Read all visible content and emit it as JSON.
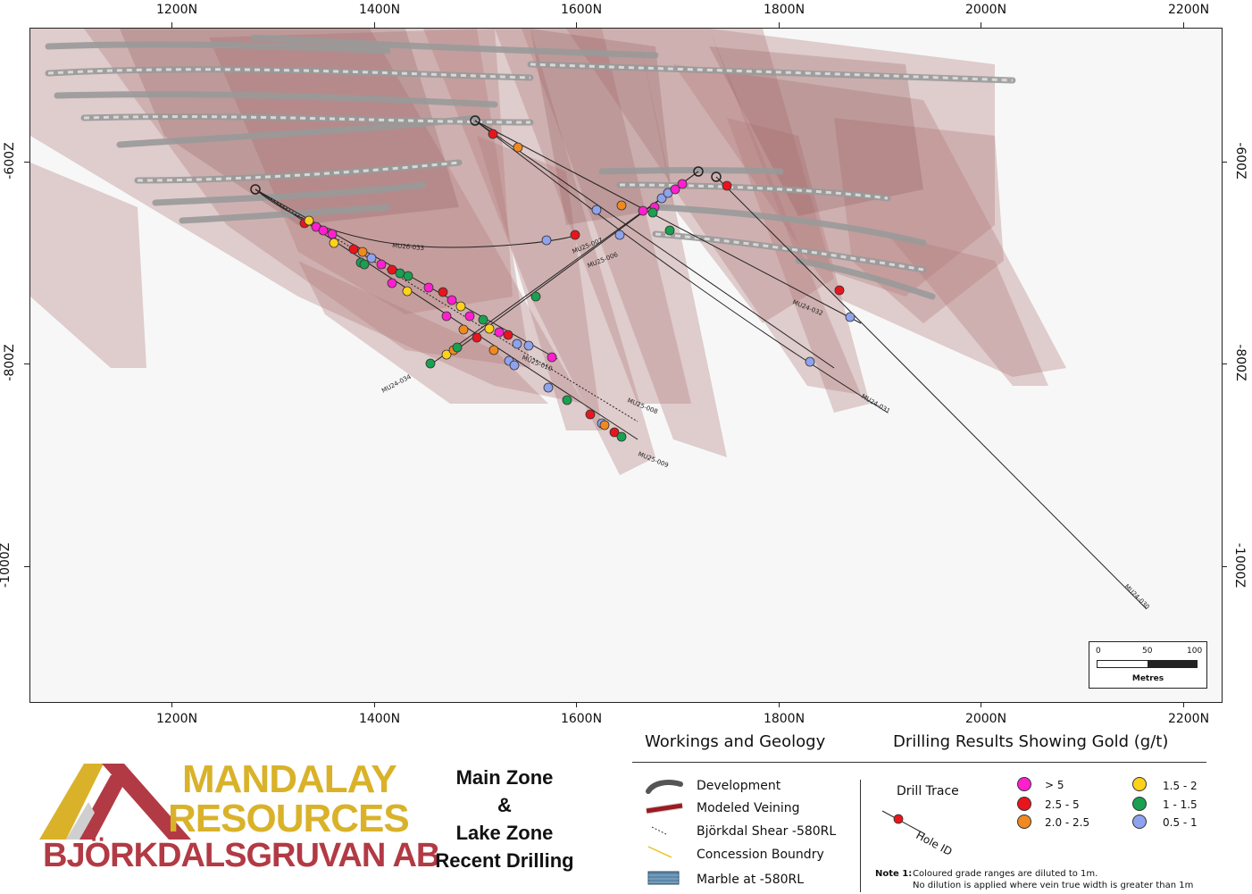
{
  "axes": {
    "northing_labels": [
      "1200N",
      "1400N",
      "1600N",
      "1800N",
      "2000N",
      "2200N"
    ],
    "depth_labels": [
      "-600Z",
      "-800Z",
      "-1000Z"
    ]
  },
  "drill_holes": [
    {
      "id": "MU26-033",
      "label": "MU26-033"
    },
    {
      "id": "MU25-007",
      "label": "MU25-007"
    },
    {
      "id": "MU25-006",
      "label": "MU25-006"
    },
    {
      "id": "MU24-032",
      "label": "MU24-032"
    },
    {
      "id": "MU25-010",
      "label": "MU25-010"
    },
    {
      "id": "MU24-034",
      "label": "MU24-034"
    },
    {
      "id": "MU25-008",
      "label": "MU25-008"
    },
    {
      "id": "MU24-031",
      "label": "MU24-031"
    },
    {
      "id": "MU25-009",
      "label": "MU25-009"
    },
    {
      "id": "MU24-030",
      "label": "MU24-030"
    }
  ],
  "scale_bar": {
    "ticks": [
      "0",
      "50",
      "100"
    ],
    "unit": "Metres"
  },
  "legend": {
    "workings_title": "Workings and Geology",
    "drilling_title": "Drilling Results Showing Gold (g/t)",
    "items": [
      {
        "label": "Development"
      },
      {
        "label": "Modeled Veining"
      },
      {
        "label": "Björkdal Shear -580RL"
      },
      {
        "label": "Concession Boundry"
      },
      {
        "label": "Marble at -580RL"
      }
    ],
    "drill_trace": "Drill Trace",
    "hole_id": "Hole ID",
    "grades": [
      {
        "label": "> 5",
        "color": "#ff1fcf"
      },
      {
        "label": "2.5 - 5",
        "color": "#e8151c"
      },
      {
        "label": "2.0 - 2.5",
        "color": "#f08a1e"
      },
      {
        "label": "1.5 - 2",
        "color": "#ffd21a"
      },
      {
        "label": "1 - 1.5",
        "color": "#19a050"
      },
      {
        "label": "0.5 - 1",
        "color": "#8ea2ee"
      }
    ],
    "note_prefix": "Note 1:",
    "note_line1": "Coloured grade ranges are diluted to 1m.",
    "note_line2": "No dilution is applied where vein true width is greater than 1m"
  },
  "title": {
    "line1": "Main Zone",
    "line2": "&",
    "line3": "Lake Zone",
    "line4": "Recent Drilling"
  },
  "logo": {
    "line1": "MANDALAY",
    "line2": "RESOURCES",
    "line3": "BJÖRKDALSGRUVAN AB",
    "gold": "#d9b22a",
    "red": "#b23a44"
  }
}
